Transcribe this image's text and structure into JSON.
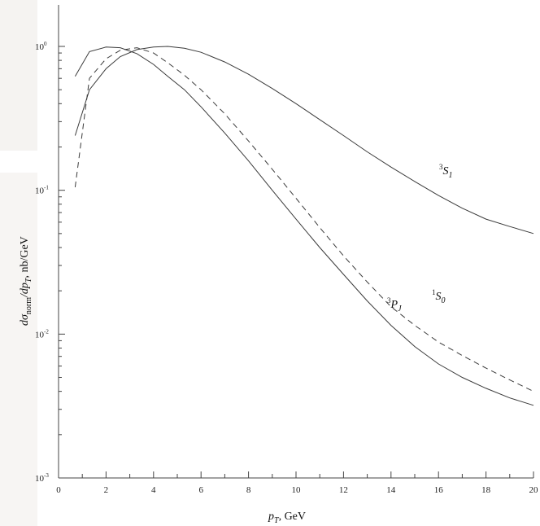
{
  "chart_data": {
    "type": "line",
    "xlabel_var": "p",
    "xlabel_sub": "T",
    "xlabel_unit": ", GeV",
    "ylabel_text": "dσnorm/dpT, nb/GeV",
    "xlim": [
      0,
      20
    ],
    "ylim_log10": [
      -3,
      0.3
    ],
    "y_scale": "log",
    "x_ticks": [
      "0",
      "2",
      "4",
      "6",
      "8",
      "10",
      "12",
      "14",
      "16",
      "18",
      "20"
    ],
    "y_ticks": [
      {
        "base": "10",
        "exp": "0"
      },
      {
        "base": "10",
        "exp": "-1"
      },
      {
        "base": "10",
        "exp": "-2"
      },
      {
        "base": "10",
        "exp": "-3"
      }
    ],
    "series": [
      {
        "name": "3S1",
        "label_sup": "3",
        "label_main": "S",
        "label_sub": "1",
        "style": "solid",
        "x": [
          0.7,
          1.3,
          2.0,
          2.6,
          3.3,
          4.0,
          4.6,
          5.3,
          6.0,
          7.0,
          8.0,
          9.0,
          10.0,
          11.0,
          12.0,
          13.0,
          14.0,
          15.0,
          16.0,
          17.0,
          18.0,
          19.0,
          20.0
        ],
        "y": [
          0.24,
          0.5,
          0.7,
          0.85,
          0.95,
          0.99,
          1.0,
          0.97,
          0.91,
          0.78,
          0.64,
          0.51,
          0.4,
          0.31,
          0.24,
          0.185,
          0.145,
          0.115,
          0.092,
          0.075,
          0.063,
          0.056,
          0.05
        ]
      },
      {
        "name": "1S0",
        "label_sup": "1",
        "label_main": "S",
        "label_sub": "0",
        "style": "dashed",
        "x": [
          0.7,
          1.3,
          2.0,
          2.6,
          3.3,
          4.0,
          4.6,
          5.3,
          6.0,
          7.0,
          8.0,
          9.0,
          10.0,
          11.0,
          12.0,
          13.0,
          14.0,
          15.0,
          16.0,
          17.0,
          18.0,
          19.0,
          20.0
        ],
        "y": [
          0.105,
          0.6,
          0.82,
          0.94,
          0.98,
          0.9,
          0.77,
          0.63,
          0.5,
          0.34,
          0.22,
          0.14,
          0.088,
          0.055,
          0.035,
          0.023,
          0.0155,
          0.0115,
          0.0088,
          0.0071,
          0.0058,
          0.0048,
          0.004
        ]
      },
      {
        "name": "3PJ",
        "label_sup": "3",
        "label_main": "P",
        "label_sub": "J",
        "style": "solid",
        "x": [
          0.7,
          1.3,
          2.0,
          2.6,
          3.3,
          4.0,
          4.6,
          5.3,
          6.0,
          7.0,
          8.0,
          9.0,
          10.0,
          11.0,
          12.0,
          13.0,
          14.0,
          15.0,
          16.0,
          17.0,
          18.0,
          19.0,
          20.0
        ],
        "y": [
          0.62,
          0.92,
          0.99,
          0.98,
          0.89,
          0.75,
          0.62,
          0.5,
          0.38,
          0.25,
          0.16,
          0.1,
          0.063,
          0.04,
          0.026,
          0.017,
          0.0115,
          0.0082,
          0.0062,
          0.005,
          0.0042,
          0.0036,
          0.0032
        ]
      }
    ]
  }
}
